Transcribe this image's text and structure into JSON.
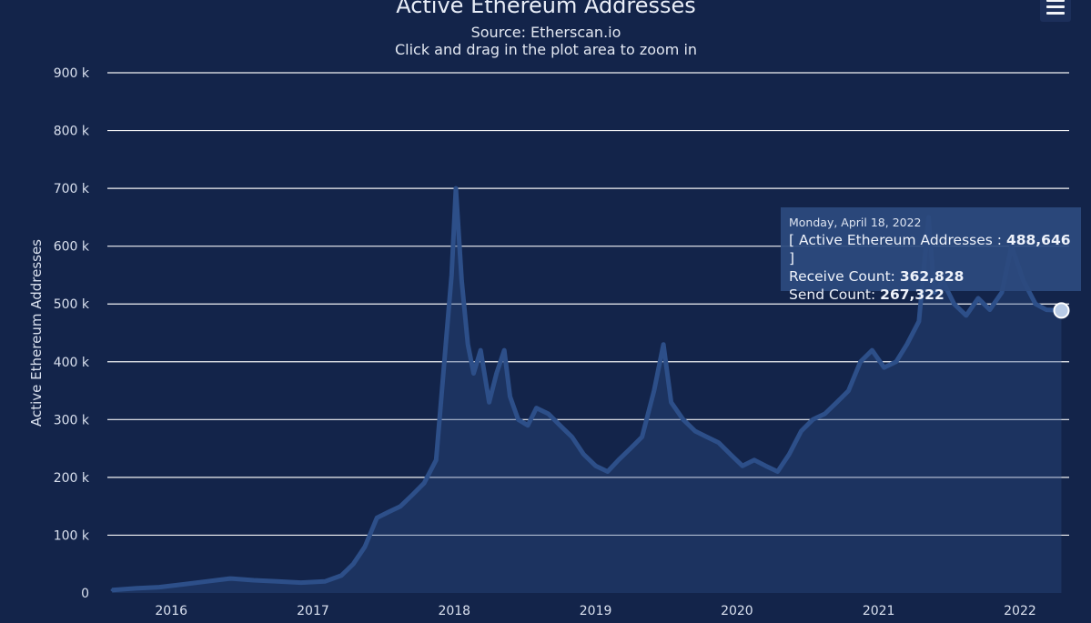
{
  "chart_data": {
    "type": "area",
    "title": "Active Ethereum Addresses",
    "subtitle": "Source: Etherscan.io",
    "hint": "Click and drag in the plot area to zoom in",
    "ylabel": "Active Ethereum Addresses",
    "ylim": [
      0,
      900000
    ],
    "yticks": [
      "0",
      "100 k",
      "200 k",
      "300 k",
      "400 k",
      "500 k",
      "600 k",
      "700 k",
      "800 k",
      "900 k"
    ],
    "xticks": [
      "2016",
      "2017",
      "2018",
      "2019",
      "2020",
      "2021",
      "2022"
    ],
    "grid": true,
    "series_color": "#2d4f89",
    "series": [
      {
        "name": "Active Ethereum Addresses",
        "x": [
          "2015-08-01",
          "2015-10-01",
          "2015-12-01",
          "2016-02-01",
          "2016-04-01",
          "2016-06-01",
          "2016-08-01",
          "2016-10-01",
          "2016-12-01",
          "2017-02-01",
          "2017-03-15",
          "2017-04-15",
          "2017-05-15",
          "2017-06-15",
          "2017-07-15",
          "2017-08-15",
          "2017-09-15",
          "2017-10-15",
          "2017-11-15",
          "2017-12-10",
          "2017-12-25",
          "2018-01-05",
          "2018-01-20",
          "2018-02-05",
          "2018-02-20",
          "2018-03-10",
          "2018-04-01",
          "2018-04-20",
          "2018-05-10",
          "2018-05-25",
          "2018-06-15",
          "2018-07-10",
          "2018-08-01",
          "2018-09-01",
          "2018-10-01",
          "2018-11-01",
          "2018-12-01",
          "2019-01-01",
          "2019-02-01",
          "2019-03-01",
          "2019-04-01",
          "2019-05-01",
          "2019-06-01",
          "2019-06-25",
          "2019-07-15",
          "2019-08-15",
          "2019-09-15",
          "2019-10-15",
          "2019-11-15",
          "2019-12-15",
          "2020-01-15",
          "2020-02-15",
          "2020-03-15",
          "2020-04-15",
          "2020-05-15",
          "2020-06-15",
          "2020-07-15",
          "2020-08-15",
          "2020-09-15",
          "2020-10-15",
          "2020-11-15",
          "2020-12-15",
          "2021-01-15",
          "2021-02-15",
          "2021-03-15",
          "2021-04-15",
          "2021-05-10",
          "2021-05-25",
          "2021-06-15",
          "2021-07-15",
          "2021-08-15",
          "2021-09-15",
          "2021-10-15",
          "2021-11-15",
          "2021-12-10",
          "2022-01-10",
          "2022-02-10",
          "2022-03-10",
          "2022-04-18"
        ],
        "values": [
          5000,
          8000,
          10000,
          15000,
          20000,
          25000,
          22000,
          20000,
          18000,
          20000,
          30000,
          50000,
          80000,
          130000,
          140000,
          150000,
          170000,
          190000,
          230000,
          430000,
          550000,
          700000,
          540000,
          430000,
          380000,
          420000,
          330000,
          380000,
          420000,
          340000,
          300000,
          290000,
          320000,
          310000,
          290000,
          270000,
          240000,
          220000,
          210000,
          230000,
          250000,
          270000,
          350000,
          430000,
          330000,
          300000,
          280000,
          270000,
          260000,
          240000,
          220000,
          230000,
          220000,
          210000,
          240000,
          280000,
          300000,
          310000,
          330000,
          350000,
          400000,
          420000,
          390000,
          400000,
          430000,
          470000,
          650000,
          520000,
          540000,
          500000,
          480000,
          510000,
          490000,
          520000,
          600000,
          540000,
          500000,
          490000,
          488646
        ]
      }
    ],
    "tooltip": {
      "date": "Monday, April 18, 2022",
      "name": "Active Ethereum Addresses",
      "value": "488,646",
      "receive_label": "Receive Count:",
      "receive_value": "362,828",
      "send_label": "Send Count:",
      "send_value": "267,322"
    }
  }
}
